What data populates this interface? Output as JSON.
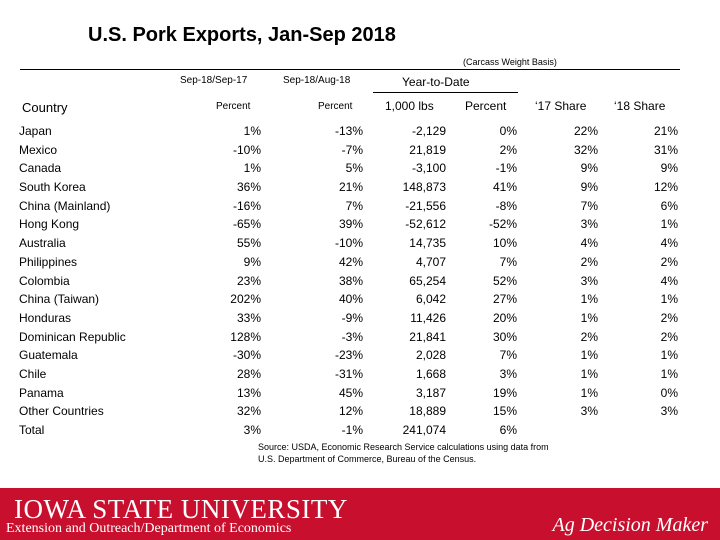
{
  "title": "U.S. Pork Exports, Jan-Sep 2018",
  "basis_note": "(Carcass Weight Basis)",
  "headers": {
    "sep_vs_sep": "Sep-18/Sep-17",
    "sep_vs_aug": "Sep-18/Aug-18",
    "ytd": "Year-to-Date",
    "country": "Country",
    "percent1": "Percent",
    "percent2": "Percent",
    "lbs": "1,000 lbs",
    "percent3": "Percent",
    "share17": "‘17 Share",
    "share18": "‘18 Share"
  },
  "rows": [
    {
      "country": "Japan",
      "c1": "1%",
      "c2": "-13%",
      "c3": "-2,129",
      "c4": "0%",
      "c5": "22%",
      "c6": "21%"
    },
    {
      "country": "Mexico",
      "c1": "-10%",
      "c2": "-7%",
      "c3": "21,819",
      "c4": "2%",
      "c5": "32%",
      "c6": "31%"
    },
    {
      "country": "Canada",
      "c1": "1%",
      "c2": "5%",
      "c3": "-3,100",
      "c4": "-1%",
      "c5": "9%",
      "c6": "9%"
    },
    {
      "country": "South Korea",
      "c1": "36%",
      "c2": "21%",
      "c3": "148,873",
      "c4": "41%",
      "c5": "9%",
      "c6": "12%"
    },
    {
      "country": "China (Mainland)",
      "c1": "-16%",
      "c2": "7%",
      "c3": "-21,556",
      "c4": "-8%",
      "c5": "7%",
      "c6": "6%"
    },
    {
      "country": "Hong Kong",
      "c1": "-65%",
      "c2": "39%",
      "c3": "-52,612",
      "c4": "-52%",
      "c5": "3%",
      "c6": "1%"
    },
    {
      "country": "Australia",
      "c1": "55%",
      "c2": "-10%",
      "c3": "14,735",
      "c4": "10%",
      "c5": "4%",
      "c6": "4%"
    },
    {
      "country": "Philippines",
      "c1": "9%",
      "c2": "42%",
      "c3": "4,707",
      "c4": "7%",
      "c5": "2%",
      "c6": "2%"
    },
    {
      "country": "Colombia",
      "c1": "23%",
      "c2": "38%",
      "c3": "65,254",
      "c4": "52%",
      "c5": "3%",
      "c6": "4%"
    },
    {
      "country": "China (Taiwan)",
      "c1": "202%",
      "c2": "40%",
      "c3": "6,042",
      "c4": "27%",
      "c5": "1%",
      "c6": "1%"
    },
    {
      "country": "Honduras",
      "c1": "33%",
      "c2": "-9%",
      "c3": "11,426",
      "c4": "20%",
      "c5": "1%",
      "c6": "2%"
    },
    {
      "country": "Dominican Republic",
      "c1": "128%",
      "c2": "-3%",
      "c3": "21,841",
      "c4": "30%",
      "c5": "2%",
      "c6": "2%"
    },
    {
      "country": "Guatemala",
      "c1": "-30%",
      "c2": "-23%",
      "c3": "2,028",
      "c4": "7%",
      "c5": "1%",
      "c6": "1%"
    },
    {
      "country": "Chile",
      "c1": "28%",
      "c2": "-31%",
      "c3": "1,668",
      "c4": "3%",
      "c5": "1%",
      "c6": "1%"
    },
    {
      "country": "Panama",
      "c1": "13%",
      "c2": "45%",
      "c3": "3,187",
      "c4": "19%",
      "c5": "1%",
      "c6": "0%"
    },
    {
      "country": "Other Countries",
      "c1": "32%",
      "c2": "12%",
      "c3": "18,889",
      "c4": "15%",
      "c5": "3%",
      "c6": "3%"
    },
    {
      "country": "Total",
      "c1": "3%",
      "c2": "-1%",
      "c3": "241,074",
      "c4": "6%",
      "c5": "",
      "c6": ""
    }
  ],
  "source_line1": "Source: USDA, Economic Research Service calculations using data from",
  "source_line2": "U.S. Department of Commerce, Bureau of the Census.",
  "footer": {
    "logo_text": "IOWA STATE UNIVERSITY",
    "extension": "Extension and Outreach/Department of Economics",
    "ag_decision": "Ag Decision Maker",
    "bg_color": "#c8102e"
  }
}
